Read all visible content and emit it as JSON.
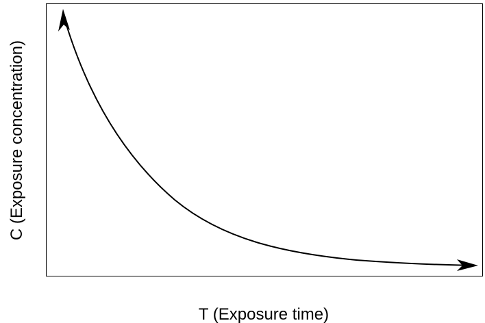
{
  "axes": {
    "x_label": "T (Exposure time)",
    "y_label": "C (Exposure concentration)"
  }
}
